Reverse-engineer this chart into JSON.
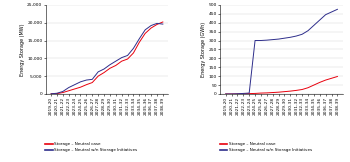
{
  "years": [
    "2019-20",
    "2020-21",
    "2021-22",
    "2022-23",
    "2023-24",
    "2024-25",
    "2025-26",
    "2026-27",
    "2027-28",
    "2028-29",
    "2029-30",
    "2030-31",
    "2031-32",
    "2032-33",
    "2033-34",
    "2034-35",
    "2035-36",
    "2036-37",
    "2037-38",
    "2038-39"
  ],
  "mw_neutral": [
    50,
    100,
    400,
    900,
    1400,
    1900,
    2600,
    3200,
    5000,
    6000,
    7200,
    8000,
    9200,
    9800,
    11500,
    14500,
    17000,
    18500,
    19500,
    20200
  ],
  "mw_initiatives": [
    50,
    200,
    700,
    1800,
    2600,
    3400,
    3900,
    4100,
    6200,
    7000,
    8200,
    9200,
    10200,
    10800,
    12800,
    15500,
    18000,
    19200,
    19800,
    19600
  ],
  "gwh_neutral": [
    0,
    0,
    0.5,
    1,
    2,
    3,
    5,
    6,
    8,
    10,
    13,
    16,
    20,
    25,
    35,
    50,
    65,
    78,
    88,
    98
  ],
  "gwh_initiatives": [
    0,
    0,
    1,
    3,
    5,
    300,
    300,
    302,
    305,
    308,
    313,
    318,
    325,
    335,
    355,
    385,
    415,
    445,
    460,
    475
  ],
  "color_neutral": "#e8000d",
  "color_initiatives": "#2e2e8b",
  "ylabel_left": "Energy Storage (MW)",
  "ylabel_right": "Energy Storage (GWh)",
  "legend_neutral": "Storage – Neutral case",
  "legend_initiatives": "Storage – Neutral w/n Storage Initiatives",
  "ylim_left": [
    0,
    25000
  ],
  "ylim_right": [
    0,
    500
  ],
  "yticks_left": [
    0,
    5000,
    10000,
    15000,
    20000,
    25000
  ],
  "yticks_right": [
    0,
    50,
    100,
    150,
    200,
    250,
    300,
    350,
    400,
    450,
    500
  ],
  "background": "#ffffff",
  "line_width": 0.7
}
